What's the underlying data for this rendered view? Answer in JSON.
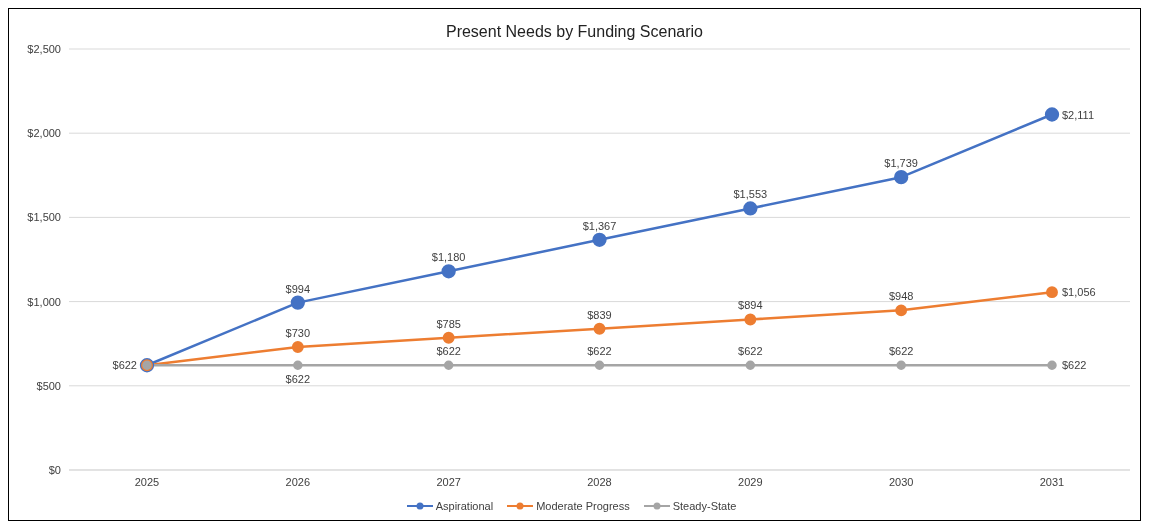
{
  "chart_data": {
    "type": "line",
    "title": "Present Needs by Funding Scenario",
    "categories": [
      "2025",
      "2026",
      "2027",
      "2028",
      "2029",
      "2030",
      "2031"
    ],
    "series": [
      {
        "name": "Aspirational",
        "color": "#4472c4",
        "values": [
          622,
          994,
          1180,
          1367,
          1553,
          1739,
          2111
        ],
        "value_labels": [
          "$622",
          "$994",
          "$1,180",
          "$1,367",
          "$1,553",
          "$1,739",
          "$2,111"
        ]
      },
      {
        "name": "Moderate Progress",
        "color": "#ed7d31",
        "values": [
          622,
          730,
          785,
          839,
          894,
          948,
          1056
        ],
        "value_labels": [
          null,
          "$730",
          "$785",
          "$839",
          "$894",
          "$948",
          "$1,056"
        ]
      },
      {
        "name": "Steady-State",
        "color": "#a5a5a5",
        "values": [
          622,
          622,
          622,
          622,
          622,
          622,
          622
        ],
        "value_labels": [
          null,
          "$622",
          "$622",
          "$622",
          "$622",
          "$622",
          "$622"
        ]
      }
    ],
    "ylim": [
      0,
      2500
    ],
    "yticks": [
      {
        "value": 0,
        "label": "$0"
      },
      {
        "value": 500,
        "label": "$500"
      },
      {
        "value": 1000,
        "label": "$1,000"
      },
      {
        "value": 1500,
        "label": "$1,500"
      },
      {
        "value": 2000,
        "label": "$2,000"
      },
      {
        "value": 2500,
        "label": "$2,500"
      }
    ],
    "grid": "y",
    "legend": "bottom",
    "marker": "circle",
    "line_style": "solid"
  }
}
